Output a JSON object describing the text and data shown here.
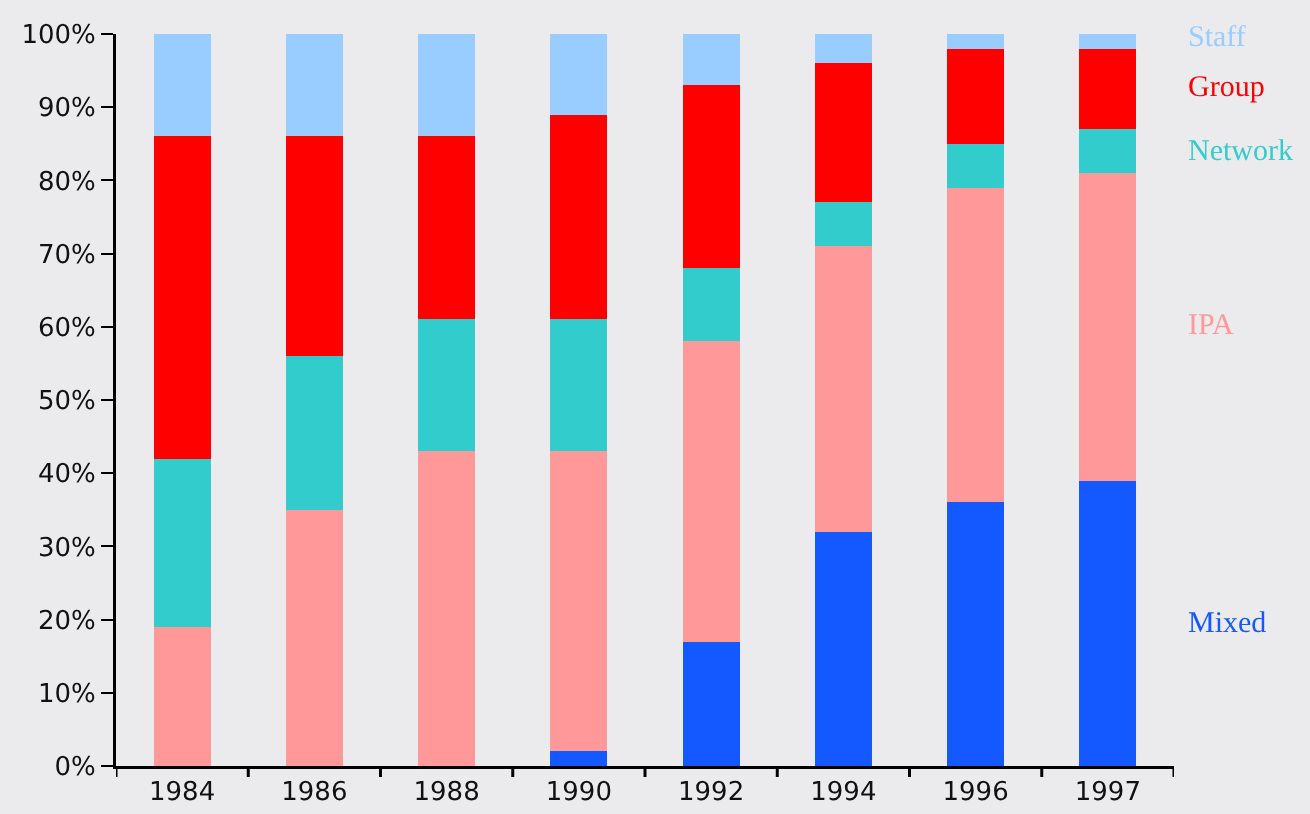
{
  "chart_data": {
    "type": "bar",
    "stacked": true,
    "categories": [
      "1984",
      "1986",
      "1988",
      "1990",
      "1992",
      "1994",
      "1996",
      "1997"
    ],
    "series": [
      {
        "name": "Mixed",
        "color": "#1458ff",
        "values": [
          0,
          0,
          0,
          2,
          17,
          32,
          36,
          39
        ]
      },
      {
        "name": "IPA",
        "color": "#ff9999",
        "values": [
          19,
          35,
          43,
          41,
          41,
          39,
          43,
          42
        ]
      },
      {
        "name": "Network",
        "color": "#33cccc",
        "values": [
          23,
          21,
          18,
          18,
          10,
          6,
          6,
          6
        ]
      },
      {
        "name": "Group",
        "color": "#ff0000",
        "values": [
          44,
          30,
          25,
          28,
          25,
          19,
          13,
          11
        ]
      },
      {
        "name": "Staff",
        "color": "#99ccff",
        "values": [
          14,
          14,
          14,
          11,
          7,
          4,
          2,
          2
        ]
      }
    ],
    "ylim": [
      0,
      100
    ],
    "yticks": [
      {
        "value": 0,
        "label": "0%"
      },
      {
        "value": 10,
        "label": "10%"
      },
      {
        "value": 20,
        "label": "20%"
      },
      {
        "value": 30,
        "label": "30%"
      },
      {
        "value": 40,
        "label": "40%"
      },
      {
        "value": 50,
        "label": "50%"
      },
      {
        "value": 60,
        "label": "60%"
      },
      {
        "value": 70,
        "label": "70%"
      },
      {
        "value": 80,
        "label": "80%"
      },
      {
        "value": 90,
        "label": "90%"
      },
      {
        "value": 100,
        "label": "100%"
      }
    ],
    "grid": false,
    "legend": false
  }
}
